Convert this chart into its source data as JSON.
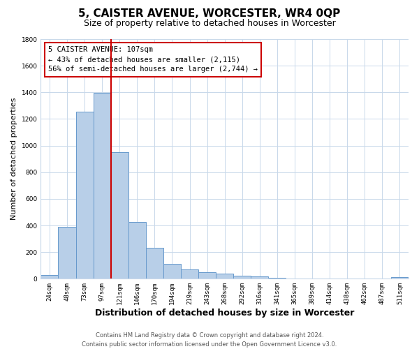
{
  "title": "5, CAISTER AVENUE, WORCESTER, WR4 0QP",
  "subtitle": "Size of property relative to detached houses in Worcester",
  "xlabel": "Distribution of detached houses by size in Worcester",
  "ylabel": "Number of detached properties",
  "footer_line1": "Contains HM Land Registry data © Crown copyright and database right 2024.",
  "footer_line2": "Contains public sector information licensed under the Open Government Licence v3.0.",
  "bar_labels": [
    "24sqm",
    "48sqm",
    "73sqm",
    "97sqm",
    "121sqm",
    "146sqm",
    "170sqm",
    "194sqm",
    "219sqm",
    "243sqm",
    "268sqm",
    "292sqm",
    "316sqm",
    "341sqm",
    "365sqm",
    "389sqm",
    "414sqm",
    "438sqm",
    "462sqm",
    "487sqm",
    "511sqm"
  ],
  "bar_values": [
    30,
    390,
    1255,
    1395,
    950,
    425,
    235,
    110,
    68,
    50,
    38,
    25,
    18,
    5,
    2,
    1,
    1,
    1,
    1,
    1,
    10
  ],
  "bar_color": "#b8cfe8",
  "bar_edge_color": "#6699cc",
  "ylim": [
    0,
    1800
  ],
  "yticks": [
    0,
    200,
    400,
    600,
    800,
    1000,
    1200,
    1400,
    1600,
    1800
  ],
  "property_line_x": 3.5,
  "annotation_text_line1": "5 CAISTER AVENUE: 107sqm",
  "annotation_text_line2": "← 43% of detached houses are smaller (2,115)",
  "annotation_text_line3": "56% of semi-detached houses are larger (2,744) →",
  "red_line_color": "#cc0000",
  "grid_color": "#c8d8ea",
  "background_color": "#ffffff",
  "title_fontsize": 11,
  "subtitle_fontsize": 9,
  "xlabel_fontsize": 9,
  "ylabel_fontsize": 8,
  "footer_fontsize": 6,
  "tick_fontsize": 6.5,
  "ann_fontsize": 7.5
}
